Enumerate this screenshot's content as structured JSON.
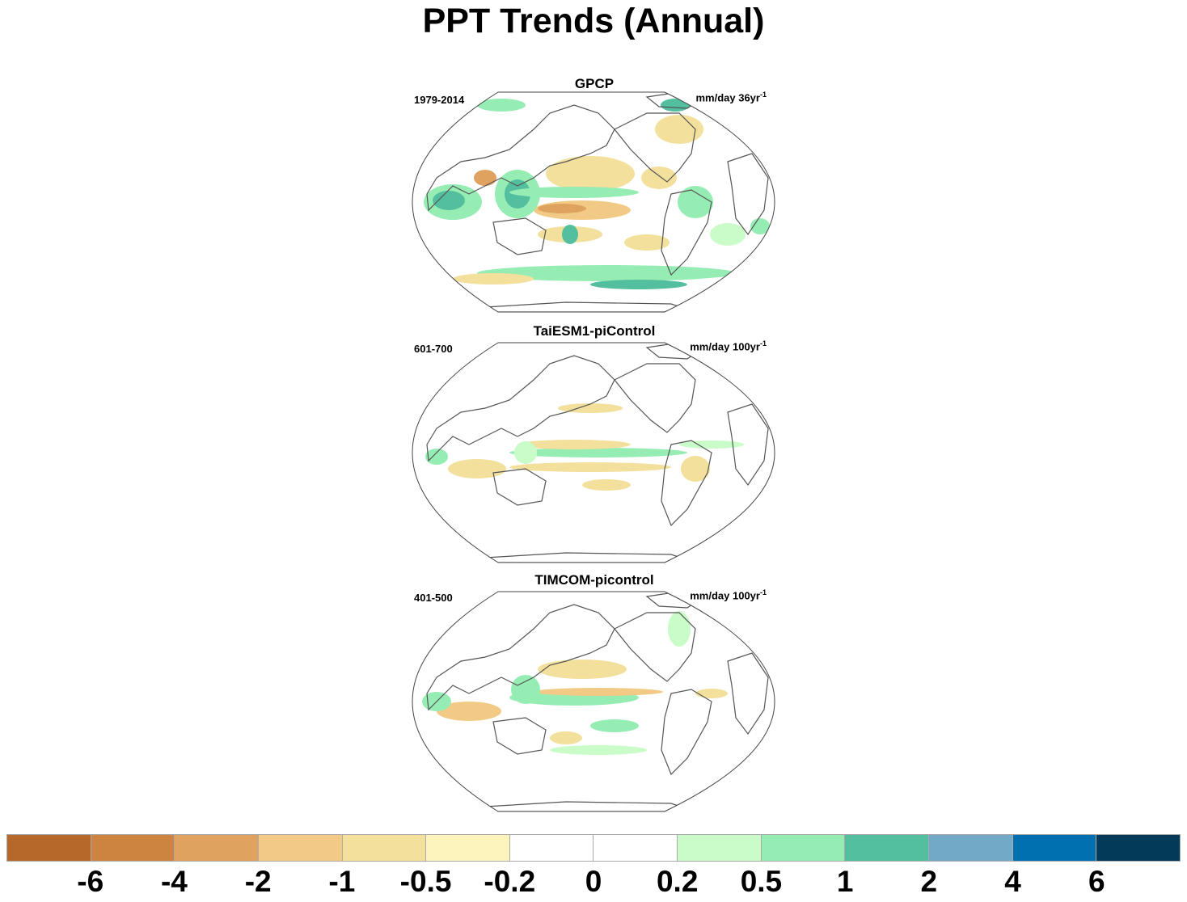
{
  "title": "PPT Trends (Annual)",
  "panels": [
    {
      "name": "GPCP",
      "period": "1979-2014",
      "units_text": "mm/day 36yr",
      "units_sup": "-1"
    },
    {
      "name": "TaiESM1-piControl",
      "period": "601-700",
      "units_text": "mm/day 100yr",
      "units_sup": "-1"
    },
    {
      "name": "TIMCOM-picontrol",
      "period": "401-500",
      "units_text": "mm/day 100yr",
      "units_sup": "-1"
    }
  ],
  "colorbar": {
    "colors": [
      "#b5682a",
      "#cd8441",
      "#dfa25f",
      "#f3ca85",
      "#f2e09c",
      "#fdf3bc",
      "#ffffff",
      "#ffffff",
      "#c9fcc8",
      "#96edb4",
      "#54bf9f",
      "#72a9c6",
      "#0170b0",
      "#033a59"
    ],
    "labels": [
      "-6",
      "-4",
      "-2",
      "-1",
      "-0.5",
      "-0.2",
      "0",
      "0.2",
      "0.5",
      "1",
      "2",
      "4",
      "6"
    ]
  }
}
